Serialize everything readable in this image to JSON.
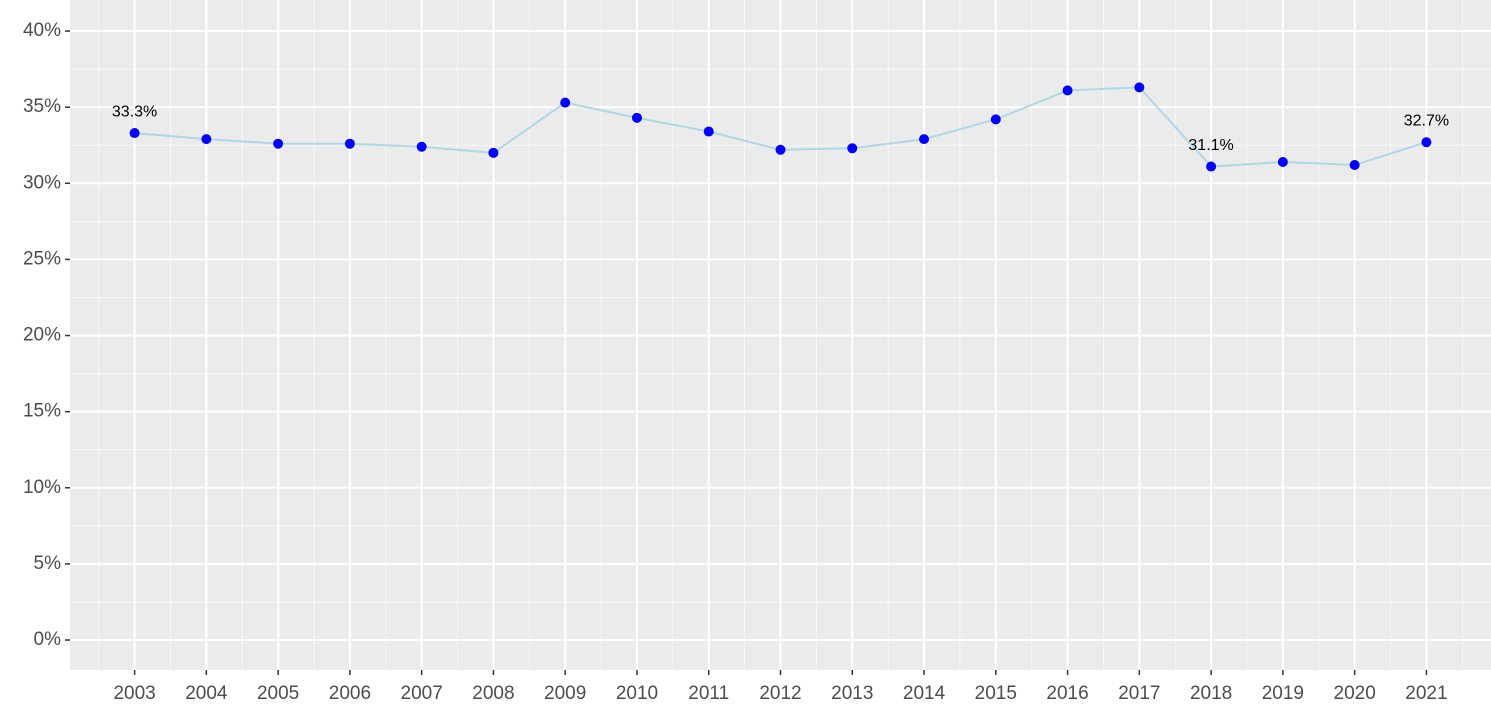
{
  "chart_data": {
    "type": "line",
    "x": [
      2003,
      2004,
      2005,
      2006,
      2007,
      2008,
      2009,
      2010,
      2011,
      2012,
      2013,
      2014,
      2015,
      2016,
      2017,
      2018,
      2019,
      2020,
      2021
    ],
    "series": [
      {
        "line_color": "#add8e6",
        "color": "#0000ff",
        "values": [
          33.3,
          32.9,
          32.6,
          32.6,
          32.4,
          32.0,
          35.3,
          34.3,
          33.4,
          32.2,
          32.3,
          32.9,
          34.2,
          36.1,
          36.3,
          31.1,
          31.4,
          31.2,
          32.7
        ],
        "value_labels": [
          "33.3%",
          null,
          null,
          null,
          null,
          null,
          null,
          null,
          null,
          null,
          null,
          null,
          null,
          null,
          null,
          "31.1%",
          null,
          null,
          "32.7%"
        ]
      }
    ],
    "xlim": [
      2002.1,
      2021.9
    ],
    "xticks": [
      2003,
      2004,
      2005,
      2006,
      2007,
      2008,
      2009,
      2010,
      2011,
      2012,
      2013,
      2014,
      2015,
      2016,
      2017,
      2018,
      2019,
      2020,
      2021
    ],
    "ylim": [
      -1.97,
      42.04
    ],
    "yticks": [
      {
        "value": 0,
        "label": "0%"
      },
      {
        "value": 5,
        "label": "5%"
      },
      {
        "value": 10,
        "label": "10%"
      },
      {
        "value": 15,
        "label": "15%"
      },
      {
        "value": 20,
        "label": "20%"
      },
      {
        "value": 25,
        "label": "25%"
      },
      {
        "value": 30,
        "label": "30%"
      },
      {
        "value": 35,
        "label": "35%"
      },
      {
        "value": 40,
        "label": "40%"
      }
    ],
    "grid": true,
    "panel_color": "#ebebeb"
  }
}
